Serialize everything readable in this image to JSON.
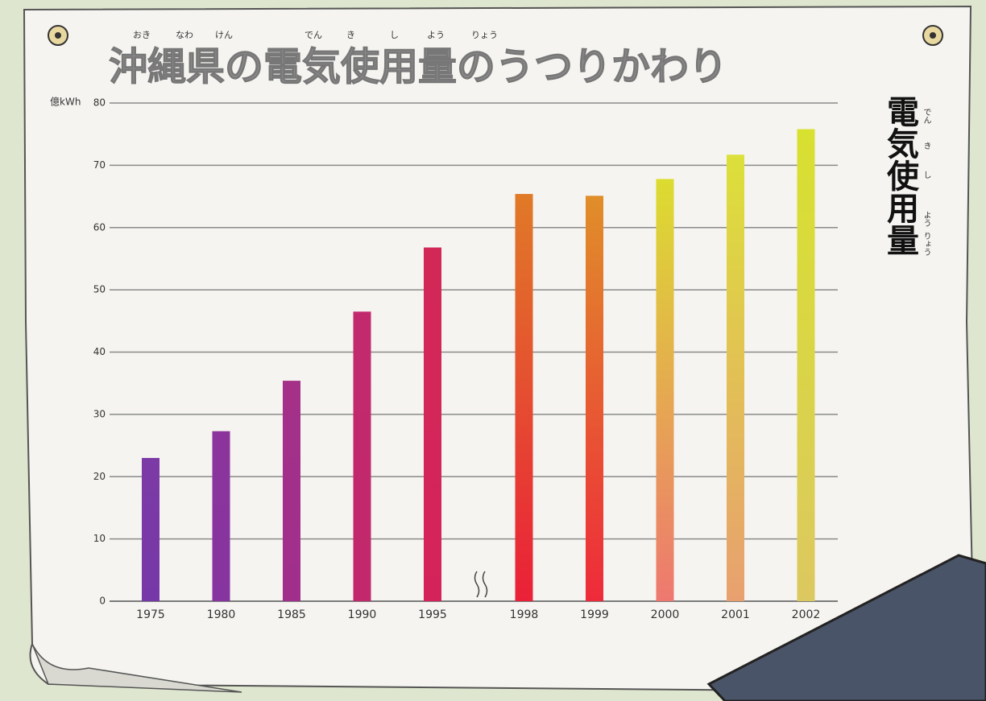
{
  "chart_data": {
    "type": "bar",
    "title": "沖縄県の電気使用量のうつりかわり",
    "title_ruby": [
      "おき",
      "なわ",
      "けん",
      "でん",
      "き",
      "し",
      "よう",
      "りょう"
    ],
    "y_label": "億kWh",
    "side_label": "電気使用量",
    "side_ruby": [
      "でん",
      "き",
      "し",
      "よう",
      "りょう"
    ],
    "categories": [
      "1975",
      "1980",
      "1985",
      "1990",
      "1995",
      "1998",
      "1999",
      "2000",
      "2001",
      "2002"
    ],
    "values": [
      23.0,
      27.3,
      35.4,
      46.5,
      56.8,
      65.4,
      65.1,
      67.8,
      71.7,
      75.8
    ],
    "colors": [
      [
        "#7638a8",
        "#7c3aa6"
      ],
      [
        "#86349f",
        "#8c349c"
      ],
      [
        "#a02f8c",
        "#a43088"
      ],
      [
        "#c2286c",
        "#c22a6e"
      ],
      [
        "#d4235a",
        "#d22858"
      ],
      [
        "#ea2038",
        "#e07a28"
      ],
      [
        "#ee2a3a",
        "#e08e2a"
      ],
      [
        "#ee7870",
        "#dcdc30"
      ],
      [
        "#e8a070",
        "#dce03a"
      ],
      [
        "#dcc860",
        "#d8e030"
      ]
    ],
    "ylim": [
      0,
      80
    ],
    "yticks": [
      0,
      10,
      20,
      30,
      40,
      50,
      60,
      70,
      80
    ],
    "grid": true
  }
}
